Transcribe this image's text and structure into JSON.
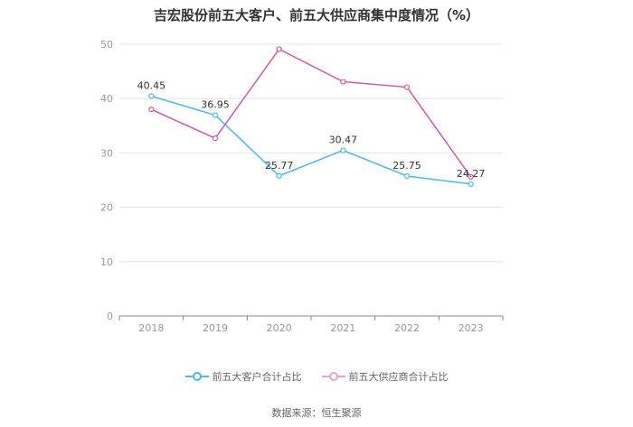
{
  "chart_data": {
    "type": "line",
    "title": "吉宏股份前五大客户、前五大供应商集中度情况（%）",
    "categories": [
      "2018",
      "2019",
      "2020",
      "2021",
      "2022",
      "2023"
    ],
    "ylim": [
      0,
      50
    ],
    "yticks": [
      0,
      10,
      20,
      30,
      40,
      50
    ],
    "grid": true,
    "legend_position": "bottom",
    "series": [
      {
        "name": "前五大客户合计占比",
        "color": "#4cb8ec",
        "values": [
          40.45,
          36.95,
          25.77,
          30.47,
          25.75,
          24.27
        ],
        "labels": [
          "40.45",
          "36.95",
          "25.77",
          "30.47",
          "25.75",
          "24.27"
        ]
      },
      {
        "name": "前五大供应商合计占比",
        "color": "#cc5aa8",
        "values": [
          38.0,
          32.7,
          49.1,
          43.1,
          42.1,
          25.6
        ],
        "labels": []
      }
    ],
    "source": "数据来源：恒生聚源"
  }
}
